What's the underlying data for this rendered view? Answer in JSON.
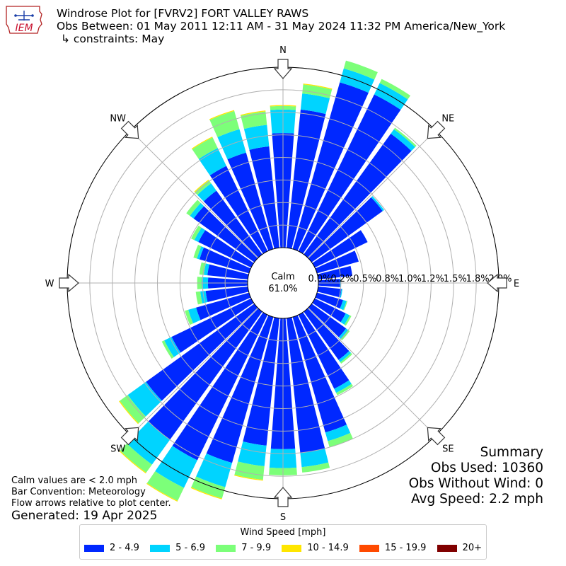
{
  "header": {
    "logo_text": "IEM",
    "title": "Windrose Plot for [FVRV2] FORT VALLEY RAWS",
    "obs_between": "Obs Between: 01 May 2011 12:11 AM - 31 May 2024 11:32 PM America/New_York",
    "constraints": "↳ constraints: May"
  },
  "notes": {
    "calm_def": "Calm values are < 2.0 mph",
    "convention": "Bar Convention: Meteorology",
    "flow": "Flow arrows relative to plot center.",
    "generated": "Generated: 19 Apr 2025"
  },
  "summary": {
    "title": "Summary",
    "obs_used": "Obs Used: 10360",
    "obs_without_wind": "Obs Without Wind: 0",
    "avg_speed": "Avg Speed: 2.2 mph"
  },
  "legend": {
    "title": "Wind Speed [mph]",
    "items": [
      {
        "label": "2 - 4.9",
        "color": "#0028ff"
      },
      {
        "label": "5 - 6.9",
        "color": "#00d4ff"
      },
      {
        "label": "7 - 9.9",
        "color": "#7cff79"
      },
      {
        "label": "10 - 14.9",
        "color": "#ffe600"
      },
      {
        "label": "15 - 19.9",
        "color": "#ff4a00"
      },
      {
        "label": "20+",
        "color": "#800000"
      }
    ]
  },
  "chart_data": {
    "type": "windrose",
    "title": "Windrose Plot for [FVRV2] FORT VALLEY RAWS",
    "calm_label": "Calm",
    "calm_value": "61.0%",
    "direction_labels": [
      "N",
      "NE",
      "E",
      "SE",
      "S",
      "SW",
      "W",
      "NW"
    ],
    "radial_tick_labels": [
      "0.0%",
      "0.2%",
      "0.5%",
      "0.8%",
      "1.0%",
      "1.2%",
      "1.5%",
      "1.8%",
      "2.0%"
    ],
    "radial_max": 2.0,
    "grid": true,
    "bin_labels": [
      "2 - 4.9",
      "5 - 6.9",
      "7 - 9.9",
      "10 - 14.9",
      "15 - 19.9",
      "20+"
    ],
    "bin_colors": [
      "#0028ff",
      "#00d4ff",
      "#7cff79",
      "#ffe600",
      "#ff4a00",
      "#800000"
    ],
    "directions_deg": [
      0,
      10,
      20,
      30,
      40,
      50,
      60,
      70,
      80,
      90,
      100,
      110,
      120,
      130,
      140,
      150,
      160,
      170,
      180,
      190,
      200,
      210,
      220,
      230,
      240,
      250,
      260,
      270,
      280,
      290,
      300,
      310,
      320,
      330,
      340,
      350
    ],
    "cumulative_percent": [
      [
        1.27,
        1.53,
        1.57,
        1.58,
        1.58,
        1.58
      ],
      [
        1.54,
        1.72,
        1.82,
        1.83,
        1.83,
        1.83
      ],
      [
        1.92,
        2.08,
        2.17,
        2.17,
        2.17,
        2.17
      ],
      [
        1.93,
        2.07,
        2.12,
        2.12,
        2.12,
        2.12
      ],
      [
        1.65,
        1.71,
        1.73,
        1.73,
        1.73,
        1.73
      ],
      [
        0.97,
        0.99,
        0.99,
        0.99,
        0.99,
        0.99
      ],
      [
        0.65,
        0.65,
        0.65,
        0.65,
        0.65,
        0.65
      ],
      [
        0.48,
        0.48,
        0.48,
        0.48,
        0.48,
        0.48
      ],
      [
        0.38,
        0.38,
        0.38,
        0.38,
        0.38,
        0.38
      ],
      [
        0.24,
        0.25,
        0.25,
        0.25,
        0.25,
        0.25
      ],
      [
        0.26,
        0.27,
        0.27,
        0.27,
        0.27,
        0.27
      ],
      [
        0.3,
        0.34,
        0.35,
        0.35,
        0.35,
        0.35
      ],
      [
        0.38,
        0.43,
        0.45,
        0.45,
        0.45,
        0.45
      ],
      [
        0.47,
        0.5,
        0.52,
        0.52,
        0.52,
        0.52
      ],
      [
        0.66,
        0.69,
        0.71,
        0.71,
        0.71,
        0.71
      ],
      [
        0.91,
        0.96,
        0.99,
        0.99,
        0.99,
        0.99
      ],
      [
        1.33,
        1.43,
        1.5,
        1.5,
        1.5,
        1.5
      ],
      [
        1.5,
        1.66,
        1.72,
        1.72,
        1.72,
        1.72
      ],
      [
        1.45,
        1.66,
        1.74,
        1.74,
        1.74,
        1.74
      ],
      [
        1.42,
        1.65,
        1.8,
        1.81,
        1.81,
        1.81
      ],
      [
        1.68,
        1.96,
        2.09,
        2.1,
        2.1,
        2.1
      ],
      [
        1.79,
        2.13,
        2.29,
        2.3,
        2.3,
        2.3
      ],
      [
        1.75,
        2.09,
        2.2,
        2.21,
        2.21,
        2.21
      ],
      [
        1.48,
        1.73,
        1.84,
        1.85,
        1.85,
        1.85
      ],
      [
        0.98,
        1.07,
        1.1,
        1.1,
        1.1,
        1.1
      ],
      [
        0.61,
        0.7,
        0.74,
        0.74,
        0.74,
        0.74
      ],
      [
        0.47,
        0.53,
        0.58,
        0.58,
        0.58,
        0.58
      ],
      [
        0.44,
        0.51,
        0.56,
        0.56,
        0.56,
        0.56
      ],
      [
        0.45,
        0.49,
        0.54,
        0.54,
        0.54,
        0.54
      ],
      [
        0.57,
        0.6,
        0.64,
        0.64,
        0.64,
        0.64
      ],
      [
        0.65,
        0.7,
        0.74,
        0.74,
        0.74,
        0.74
      ],
      [
        0.83,
        0.88,
        0.93,
        0.93,
        0.93,
        0.93
      ],
      [
        0.87,
        0.97,
        1.01,
        1.02,
        1.02,
        1.02
      ],
      [
        1.05,
        1.27,
        1.4,
        1.41,
        1.41,
        1.41
      ],
      [
        1.11,
        1.38,
        1.59,
        1.6,
        1.6,
        1.6
      ],
      [
        1.13,
        1.37,
        1.52,
        1.53,
        1.53,
        1.53
      ]
    ]
  }
}
